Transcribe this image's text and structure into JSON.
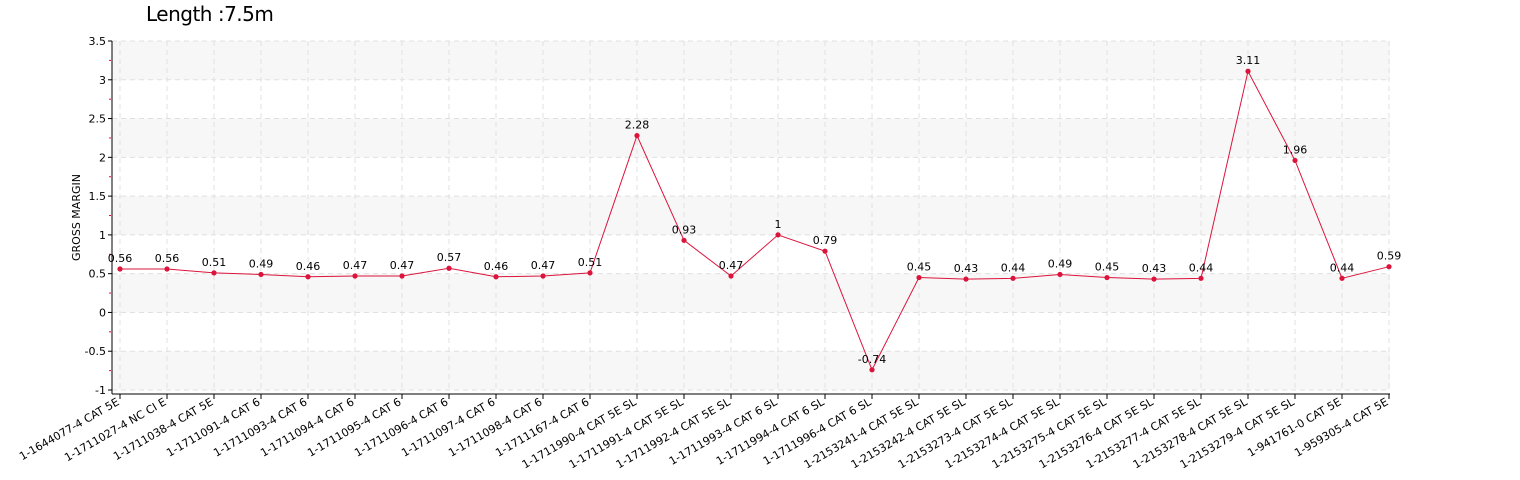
{
  "chart_data": {
    "type": "line",
    "title": "Length :7.5m",
    "xlabel": "",
    "ylabel": "GROSS MARGIN",
    "ylim": [
      -1,
      3.5
    ],
    "yticks": [
      -1,
      -0.5,
      0,
      0.5,
      1,
      1.5,
      2,
      2.5,
      3,
      3.5
    ],
    "ytick_labels": [
      "-1",
      "-0.5",
      "0",
      "0.5",
      "1",
      "1.5",
      "2",
      "2.5",
      "3",
      "3.5"
    ],
    "grid": true,
    "legend": "none",
    "categories": [
      "1-1644077-4 CAT 5E",
      "1-1711027-4 NC CI E",
      "1-1711038-4 CAT 5E",
      "1-1711091-4 CAT 6",
      "1-1711093-4 CAT 6",
      "1-1711094-4 CAT 6",
      "1-1711095-4 CAT 6",
      "1-1711096-4 CAT 6",
      "1-1711097-4 CAT 6",
      "1-1711098-4 CAT 6",
      "1-1711167-4 CAT 6",
      "1-1711990-4 CAT 5E SL",
      "1-1711991-4 CAT 5E SL",
      "1-1711992-4 CAT 5E SL",
      "1-1711993-4 CAT 6 SL",
      "1-1711994-4 CAT 6 SL",
      "1-1711996-4 CAT 6 SL",
      "1-2153241-4 CAT 5E SL",
      "1-2153242-4 CAT 5E SL",
      "1-2153273-4 CAT 5E SL",
      "1-2153274-4 CAT 5E SL",
      "1-2153275-4 CAT 5E SL",
      "1-2153276-4 CAT 5E SL",
      "1-2153277-4 CAT 5E SL",
      "1-2153278-4 CAT 5E SL",
      "1-2153279-4 CAT 5E SL",
      "1-941761-0 CAT 5E",
      "1-959305-4 CAT 5E"
    ],
    "values": [
      0.56,
      0.56,
      0.51,
      0.49,
      0.46,
      0.47,
      0.47,
      0.57,
      0.46,
      0.47,
      0.51,
      2.28,
      0.93,
      0.47,
      1,
      0.79,
      -0.74,
      0.45,
      0.43,
      0.44,
      0.49,
      0.45,
      0.43,
      0.44,
      3.11,
      1.96,
      0.44,
      0.59
    ],
    "data_labels": [
      "0.56",
      "0.56",
      "0.51",
      "0.49",
      "0.46",
      "0.47",
      "0.47",
      "0.57",
      "0.46",
      "0.47",
      "0.51",
      "2.28",
      "0.93",
      "0.47",
      "1",
      "0.79",
      "-0.74",
      "0.45",
      "0.43",
      "0.44",
      "0.49",
      "0.45",
      "0.43",
      "0.44",
      "3.11",
      "1.96",
      "0.44",
      "0.59"
    ],
    "colors": {
      "line": "#dc143c",
      "point": "#dc143c",
      "band": "#f7f7f7",
      "grid": "#e0e0e0",
      "axis": "#000000"
    }
  }
}
